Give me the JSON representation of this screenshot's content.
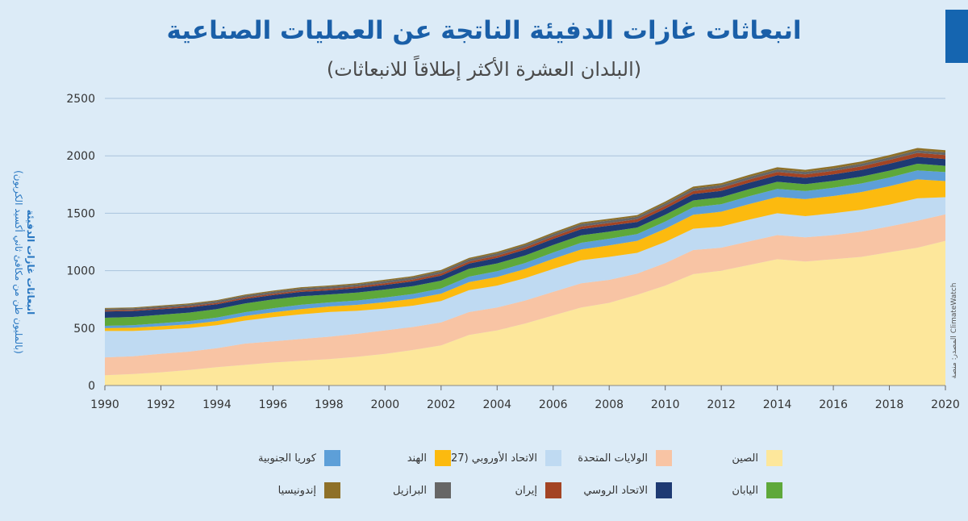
{
  "title": "انبعاثات غازات الدفيئة الناتجة عن العمليات الصناعية",
  "subtitle": "(البلدان العشرة الأكثر إطلاقاً للانبعاثات)",
  "source": "المصدر: منصة ClimateWatch",
  "chart_data": {
    "type": "area",
    "stacked": true,
    "ylabel_line1": "انبعاثات غازات الدفيئة",
    "ylabel_line2": "(بالمليون طن من مكافئ ثاني أكسيد الكربون)",
    "ylim": [
      0,
      2500
    ],
    "yticks": [
      0,
      500,
      1000,
      1500,
      2000,
      2500
    ],
    "xlim": [
      1990,
      2020
    ],
    "xticks": [
      1990,
      1992,
      1994,
      1996,
      1998,
      2000,
      2002,
      2004,
      2006,
      2008,
      2010,
      2012,
      2014,
      2016,
      2018,
      2020
    ],
    "grid": "horizontal",
    "legend_position": "bottom",
    "x": [
      1990,
      1991,
      1992,
      1993,
      1994,
      1995,
      1996,
      1997,
      1998,
      1999,
      2000,
      2001,
      2002,
      2003,
      2004,
      2005,
      2006,
      2007,
      2008,
      2009,
      2010,
      2011,
      2012,
      2013,
      2014,
      2015,
      2016,
      2017,
      2018,
      2019,
      2020
    ],
    "series": [
      {
        "name": "الصين",
        "color": "#fde79b",
        "values": [
          90,
          100,
          115,
          135,
          160,
          180,
          200,
          215,
          230,
          250,
          275,
          310,
          350,
          440,
          480,
          540,
          610,
          680,
          720,
          790,
          870,
          970,
          1000,
          1050,
          1100,
          1080,
          1100,
          1120,
          1160,
          1200,
          1260
        ]
      },
      {
        "name": "الولايات المتحدة",
        "color": "#f8c4a4",
        "values": [
          155,
          155,
          162,
          160,
          165,
          185,
          185,
          190,
          195,
          200,
          205,
          200,
          200,
          200,
          200,
          200,
          205,
          210,
          200,
          185,
          195,
          210,
          200,
          205,
          210,
          210,
          210,
          220,
          225,
          235,
          230
        ]
      },
      {
        "name": "الاتحاد الأوروبي (27)",
        "color": "#bfdaf2",
        "values": [
          230,
          220,
          210,
          205,
          200,
          200,
          210,
          215,
          215,
          200,
          190,
          185,
          185,
          190,
          190,
          195,
          200,
          200,
          200,
          180,
          185,
          185,
          185,
          190,
          190,
          185,
          190,
          190,
          190,
          195,
          150
        ]
      },
      {
        "name": "الهند",
        "color": "#fcba0f",
        "values": [
          25,
          28,
          30,
          33,
          36,
          40,
          42,
          45,
          48,
          52,
          56,
          60,
          65,
          70,
          75,
          80,
          88,
          95,
          100,
          105,
          115,
          122,
          128,
          135,
          142,
          148,
          150,
          155,
          160,
          165,
          140
        ]
      },
      {
        "name": "كوريا الجنوبية",
        "color": "#5d9fd8",
        "values": [
          20,
          22,
          25,
          28,
          30,
          33,
          36,
          38,
          35,
          38,
          40,
          42,
          45,
          48,
          50,
          52,
          55,
          58,
          58,
          58,
          62,
          65,
          66,
          68,
          70,
          70,
          72,
          74,
          76,
          78,
          78
        ]
      },
      {
        "name": "اليابان",
        "color": "#5ea83a",
        "values": [
          70,
          72,
          74,
          74,
          75,
          76,
          76,
          74,
          70,
          70,
          70,
          68,
          68,
          68,
          68,
          66,
          66,
          65,
          62,
          58,
          60,
          60,
          60,
          62,
          62,
          60,
          60,
          60,
          60,
          58,
          55
        ]
      },
      {
        "name": "الاتحاد الروسي",
        "color": "#1e3a73",
        "values": [
          55,
          52,
          48,
          45,
          42,
          40,
          38,
          38,
          36,
          38,
          40,
          42,
          44,
          46,
          48,
          50,
          52,
          54,
          52,
          48,
          52,
          55,
          56,
          56,
          56,
          55,
          56,
          58,
          60,
          60,
          58
        ]
      },
      {
        "name": "إيران",
        "color": "#a34424",
        "values": [
          8,
          9,
          10,
          10,
          11,
          12,
          12,
          13,
          14,
          14,
          15,
          16,
          17,
          18,
          19,
          20,
          21,
          22,
          23,
          24,
          25,
          26,
          27,
          28,
          29,
          30,
          31,
          32,
          33,
          34,
          35
        ]
      },
      {
        "name": "البرازيل",
        "color": "#666666",
        "values": [
          15,
          15,
          15,
          16,
          16,
          17,
          17,
          18,
          18,
          18,
          19,
          19,
          20,
          20,
          21,
          21,
          22,
          22,
          22,
          21,
          22,
          23,
          23,
          23,
          23,
          22,
          22,
          22,
          23,
          23,
          23
        ]
      },
      {
        "name": "إندونيسيا",
        "color": "#8e7028",
        "values": [
          7,
          7,
          8,
          8,
          9,
          9,
          10,
          10,
          10,
          10,
          11,
          11,
          12,
          12,
          13,
          13,
          14,
          14,
          15,
          15,
          16,
          16,
          17,
          17,
          18,
          18,
          19,
          19,
          20,
          20,
          20
        ]
      }
    ]
  }
}
